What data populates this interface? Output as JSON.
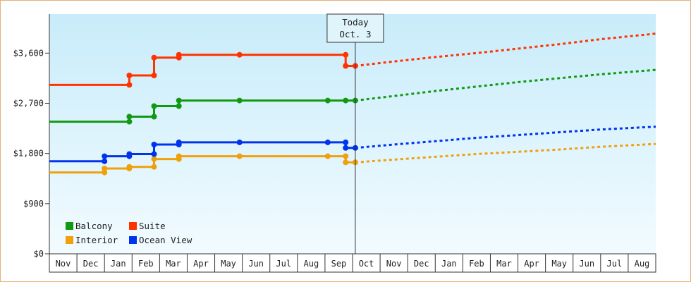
{
  "chart_data": {
    "type": "line",
    "title": "",
    "xlabel": "",
    "ylabel": "",
    "ylim": [
      0,
      4300
    ],
    "y_ticks": [
      {
        "value": 0,
        "label": "$0"
      },
      {
        "value": 900,
        "label": "$900"
      },
      {
        "value": 1800,
        "label": "$1,800"
      },
      {
        "value": 2700,
        "label": "$2,700"
      },
      {
        "value": 3600,
        "label": "$3,600"
      }
    ],
    "month_labels": [
      "Nov",
      "Dec",
      "Jan",
      "Feb",
      "Mar",
      "Apr",
      "May",
      "Jun",
      "Jul",
      "Aug",
      "Sep",
      "Oct",
      "Nov",
      "Dec",
      "Jan",
      "Feb",
      "Mar",
      "Apr",
      "May",
      "Jun",
      "Jul",
      "Aug"
    ],
    "x_range": [
      0,
      22
    ],
    "today": {
      "x": 11.1,
      "line1": "Today",
      "line2": "Oct. 3"
    },
    "grid": false,
    "legend_position": "bottom-left",
    "series": [
      {
        "name": "Balcony",
        "color": "#119911",
        "history": [
          [
            0,
            2370
          ],
          [
            2.9,
            2370
          ],
          [
            2.9,
            2460
          ],
          [
            3.8,
            2460
          ],
          [
            3.8,
            2650
          ],
          [
            4.7,
            2650
          ],
          [
            4.7,
            2750
          ],
          [
            6.9,
            2750
          ],
          [
            10.1,
            2750
          ],
          [
            10.75,
            2750
          ],
          [
            11.1,
            2750
          ]
        ],
        "forecast": [
          [
            11.1,
            2750
          ],
          [
            12.5,
            2830
          ],
          [
            14,
            2920
          ],
          [
            15.5,
            3000
          ],
          [
            17,
            3080
          ],
          [
            18.5,
            3150
          ],
          [
            20,
            3220
          ],
          [
            22,
            3300
          ]
        ]
      },
      {
        "name": "Suite",
        "color": "#ff3300",
        "history": [
          [
            0,
            3030
          ],
          [
            2.9,
            3030
          ],
          [
            2.9,
            3200
          ],
          [
            3.8,
            3200
          ],
          [
            3.8,
            3520
          ],
          [
            4.7,
            3520
          ],
          [
            4.7,
            3570
          ],
          [
            6.9,
            3570
          ],
          [
            10.75,
            3570
          ],
          [
            10.75,
            3370
          ],
          [
            11.1,
            3370
          ]
        ],
        "forecast": [
          [
            11.1,
            3370
          ],
          [
            12.5,
            3450
          ],
          [
            14,
            3530
          ],
          [
            15.5,
            3600
          ],
          [
            17,
            3680
          ],
          [
            18.5,
            3760
          ],
          [
            20,
            3850
          ],
          [
            22,
            3950
          ]
        ]
      },
      {
        "name": "Interior",
        "color": "#f0a00a",
        "history": [
          [
            0,
            1460
          ],
          [
            2,
            1460
          ],
          [
            2,
            1530
          ],
          [
            2.9,
            1530
          ],
          [
            2.9,
            1560
          ],
          [
            3.8,
            1560
          ],
          [
            3.8,
            1700
          ],
          [
            4.7,
            1700
          ],
          [
            4.7,
            1750
          ],
          [
            6.9,
            1750
          ],
          [
            10.1,
            1750
          ],
          [
            10.75,
            1750
          ],
          [
            10.75,
            1640
          ],
          [
            11.1,
            1640
          ]
        ],
        "forecast": [
          [
            11.1,
            1640
          ],
          [
            12.5,
            1690
          ],
          [
            14,
            1740
          ],
          [
            15.5,
            1790
          ],
          [
            17,
            1830
          ],
          [
            18.5,
            1870
          ],
          [
            20,
            1920
          ],
          [
            22,
            1970
          ]
        ]
      },
      {
        "name": "Ocean View",
        "color": "#0033ee",
        "history": [
          [
            0,
            1660
          ],
          [
            2,
            1660
          ],
          [
            2,
            1750
          ],
          [
            2.9,
            1750
          ],
          [
            2.9,
            1790
          ],
          [
            3.8,
            1790
          ],
          [
            3.8,
            1960
          ],
          [
            4.7,
            1960
          ],
          [
            4.7,
            2000
          ],
          [
            6.9,
            2000
          ],
          [
            10.1,
            2000
          ],
          [
            10.75,
            2000
          ],
          [
            10.75,
            1900
          ],
          [
            11.1,
            1900
          ]
        ],
        "forecast": [
          [
            11.1,
            1900
          ],
          [
            12.5,
            1960
          ],
          [
            14,
            2020
          ],
          [
            15.5,
            2080
          ],
          [
            17,
            2130
          ],
          [
            18.5,
            2180
          ],
          [
            20,
            2230
          ],
          [
            22,
            2280
          ]
        ]
      }
    ]
  },
  "legend": [
    {
      "name": "Balcony",
      "color": "#119911"
    },
    {
      "name": "Suite",
      "color": "#ff3300"
    },
    {
      "name": "Interior",
      "color": "#f0a00a"
    },
    {
      "name": "Ocean View",
      "color": "#0033ee"
    }
  ]
}
